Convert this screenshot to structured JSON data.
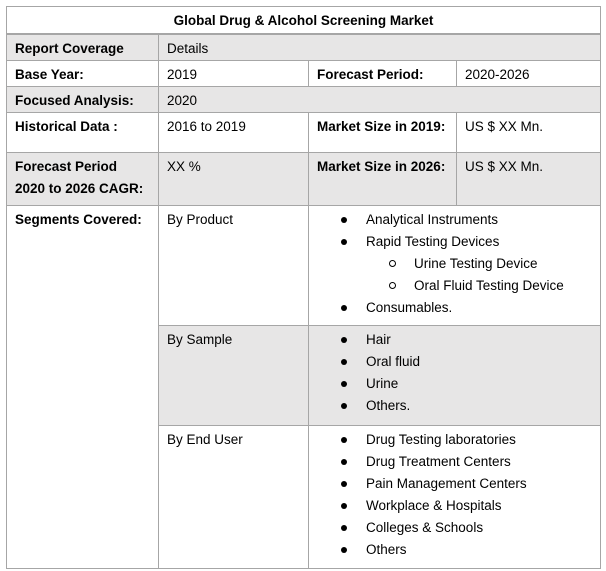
{
  "title": "Global Drug & Alcohol Screening Market",
  "rows": {
    "coverage": {
      "label": "Report Coverage",
      "value": "Details"
    },
    "base_year": {
      "label": "Base Year:",
      "value": "2019",
      "label2": "Forecast Period:",
      "value2": "2020-2026"
    },
    "focused": {
      "label": "Focused Analysis:",
      "value": "2020"
    },
    "historical": {
      "label": "Historical Data :",
      "value": "2016 to 2019",
      "label2": "Market Size in 2019:",
      "value2": "US $ XX Mn."
    },
    "cagr": {
      "label": "Forecast Period 2020 to 2026 CAGR:",
      "value": "XX %",
      "label2": "Market Size in 2026:",
      "value2": "US $ XX Mn."
    }
  },
  "segments": {
    "label": "Segments Covered:",
    "groups": [
      {
        "name": "By Product",
        "items": [
          "Analytical Instruments",
          "Rapid Testing Devices",
          "Urine Testing Device",
          "Oral Fluid Testing Device",
          "Consumables."
        ]
      },
      {
        "name": "By Sample",
        "items": [
          "Hair",
          "Oral fluid",
          "Urine",
          "Others."
        ]
      },
      {
        "name": "By End User",
        "items": [
          "Drug Testing laboratories",
          "Drug Treatment Centers",
          "Pain Management Centers",
          "Workplace & Hospitals",
          "Colleges & Schools",
          "Others"
        ]
      }
    ]
  }
}
